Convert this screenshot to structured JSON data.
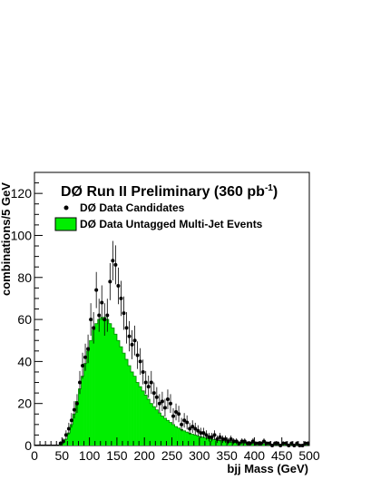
{
  "colors": {
    "histogram_fill": "#00ee00",
    "histogram_edge": "#008800",
    "points": "#000000"
  },
  "chart_data": {
    "type": "bar",
    "title": "DØ Run II Preliminary (360 pb",
    "title_sup": "-1",
    "title_close": ")",
    "xlabel": "bjj Mass (GeV)",
    "ylabel": "combinations/5 GeV",
    "xlim": [
      0,
      500
    ],
    "ylim": [
      0,
      130
    ],
    "bin_width": 5,
    "xticks": [
      0,
      50,
      100,
      150,
      200,
      250,
      300,
      350,
      400,
      450,
      500
    ],
    "yticks": [
      0,
      20,
      40,
      60,
      80,
      100,
      120
    ],
    "xtick_labels": [
      "0",
      "50",
      "100",
      "150",
      "200",
      "250",
      "300",
      "350",
      "400",
      "450",
      "500"
    ],
    "ytick_labels": [
      "0",
      "20",
      "40",
      "60",
      "80",
      "100",
      "120"
    ],
    "legend_placement": "top-left",
    "series": [
      {
        "name": "DØ Data Untagged Multi-Jet Events",
        "kind": "histogram",
        "bin_low_edges": [
          45,
          50,
          55,
          60,
          65,
          70,
          75,
          80,
          85,
          90,
          95,
          100,
          105,
          110,
          115,
          120,
          125,
          130,
          135,
          140,
          145,
          150,
          155,
          160,
          165,
          170,
          175,
          180,
          185,
          190,
          195,
          200,
          205,
          210,
          215,
          220,
          225,
          230,
          235,
          240,
          245,
          250,
          255,
          260,
          265,
          270,
          275,
          280,
          285,
          290,
          295,
          300,
          305,
          310,
          315,
          320,
          325,
          330,
          335,
          340,
          345,
          350,
          355,
          360,
          365,
          370,
          375,
          380,
          385,
          390,
          395,
          400,
          405,
          410,
          415,
          420,
          425,
          430,
          435,
          440,
          445,
          450,
          455,
          460,
          465,
          470,
          475,
          480,
          485,
          490,
          495
        ],
        "values": [
          0.3,
          1.5,
          3,
          6,
          10,
          15,
          21,
          27,
          33,
          39,
          45,
          50,
          55,
          58,
          60,
          61,
          61,
          60,
          58,
          56,
          53,
          50,
          47,
          44,
          41,
          38,
          35,
          33,
          30,
          28,
          26,
          24,
          22,
          20,
          18.5,
          17,
          15.5,
          14,
          13,
          12,
          11,
          10,
          9,
          8.3,
          7.6,
          7,
          6.4,
          5.9,
          5.4,
          5,
          4.6,
          4.2,
          3.9,
          3.6,
          3.3,
          3,
          2.8,
          2.6,
          2.4,
          2.2,
          2,
          1.9,
          1.8,
          1.7,
          1.6,
          1.5,
          1.4,
          1.3,
          1.2,
          1.1,
          1,
          0.95,
          0.9,
          0.85,
          0.8,
          0.75,
          0.7,
          0.65,
          0.6,
          0.56,
          0.52,
          0.48,
          0.45,
          0.42,
          0.4,
          0.38,
          0.36,
          0.34,
          0.32,
          0.3,
          0.28
        ]
      },
      {
        "name": "DØ Data Candidates",
        "kind": "points",
        "x": [
          47.5,
          52.5,
          57.5,
          62.5,
          67.5,
          72.5,
          77.5,
          82.5,
          87.5,
          92.5,
          97.5,
          102.5,
          107.5,
          112.5,
          117.5,
          122.5,
          127.5,
          132.5,
          137.5,
          142.5,
          147.5,
          152.5,
          157.5,
          162.5,
          167.5,
          172.5,
          177.5,
          182.5,
          187.5,
          192.5,
          197.5,
          202.5,
          207.5,
          212.5,
          217.5,
          222.5,
          227.5,
          232.5,
          237.5,
          242.5,
          247.5,
          252.5,
          257.5,
          262.5,
          267.5,
          272.5,
          277.5,
          282.5,
          287.5,
          292.5,
          297.5,
          302.5,
          307.5,
          312.5,
          317.5,
          322.5,
          327.5,
          332.5,
          337.5,
          342.5,
          347.5,
          352.5,
          357.5,
          362.5,
          367.5,
          372.5,
          377.5,
          382.5,
          387.5,
          392.5,
          397.5,
          402.5,
          407.5,
          412.5,
          417.5,
          422.5,
          427.5,
          432.5,
          437.5,
          442.5,
          447.5,
          452.5,
          457.5,
          462.5,
          467.5,
          472.5,
          477.5,
          482.5,
          487.5,
          492.5,
          497.5
        ],
        "y": [
          1,
          2,
          5,
          8,
          12,
          17,
          20,
          30,
          38,
          42,
          46,
          60,
          56,
          74,
          62,
          68,
          60,
          62,
          78,
          88,
          86,
          76,
          70,
          63,
          56,
          52,
          48,
          50,
          43,
          40,
          35,
          30,
          28,
          30,
          25,
          23,
          20,
          21,
          18,
          22,
          20,
          14,
          16,
          15,
          10,
          12,
          11,
          8,
          9,
          8,
          7,
          6,
          6,
          5,
          4,
          4,
          5,
          3,
          4,
          3,
          3,
          2,
          3,
          2,
          2,
          1,
          2,
          2,
          1,
          1,
          2,
          1,
          1,
          1,
          2,
          1,
          1,
          0,
          1,
          1,
          0,
          1,
          1,
          0,
          1,
          0,
          1,
          0,
          0,
          1,
          1
        ]
      }
    ]
  }
}
